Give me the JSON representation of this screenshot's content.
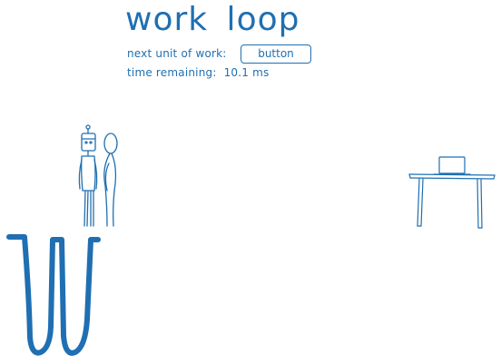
{
  "title": "work loop",
  "next_unit": {
    "label": "next unit of work:",
    "value": "button"
  },
  "time_remaining": {
    "label": "time remaining:",
    "value": "10.1 ms"
  },
  "colors": {
    "ink": "#1f6fb2"
  }
}
